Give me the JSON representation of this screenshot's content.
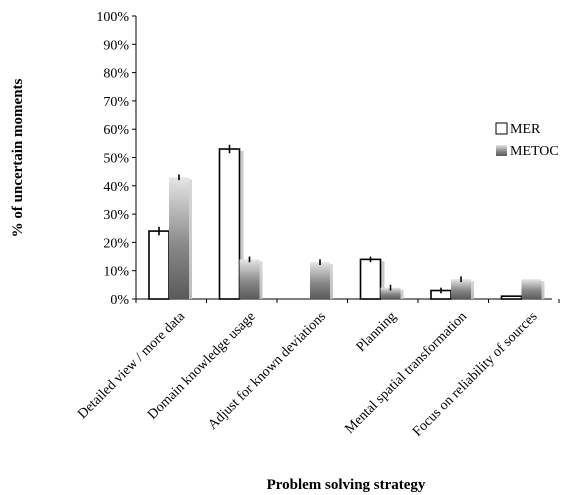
{
  "chart_data": {
    "type": "bar",
    "xlabel": "Problem solving strategy",
    "ylabel": "% of uncertain moments",
    "ylim": [
      0,
      100
    ],
    "yticks": [
      "0%",
      "10%",
      "20%",
      "30%",
      "40%",
      "50%",
      "60%",
      "70%",
      "80%",
      "90%",
      "100%"
    ],
    "categories": [
      "Detailed view / more data",
      "Domain knowledge usage",
      "Adjust for known deviations",
      "Planning",
      "Mental spatial transformation",
      "Focus on reliability of sources"
    ],
    "series": [
      {
        "name": "MER",
        "values": [
          24,
          53,
          0,
          14,
          3,
          1
        ],
        "error": [
          1.5,
          1.5,
          0,
          1,
          1,
          0
        ]
      },
      {
        "name": "METOC",
        "values": [
          43,
          14,
          13,
          4,
          7,
          7
        ],
        "error": [
          1,
          1,
          1,
          1,
          1,
          0
        ]
      }
    ],
    "grid": false,
    "legend_position": "right",
    "colors": {
      "MER": "#ffffff",
      "METOC": "#8c8c8c"
    }
  }
}
